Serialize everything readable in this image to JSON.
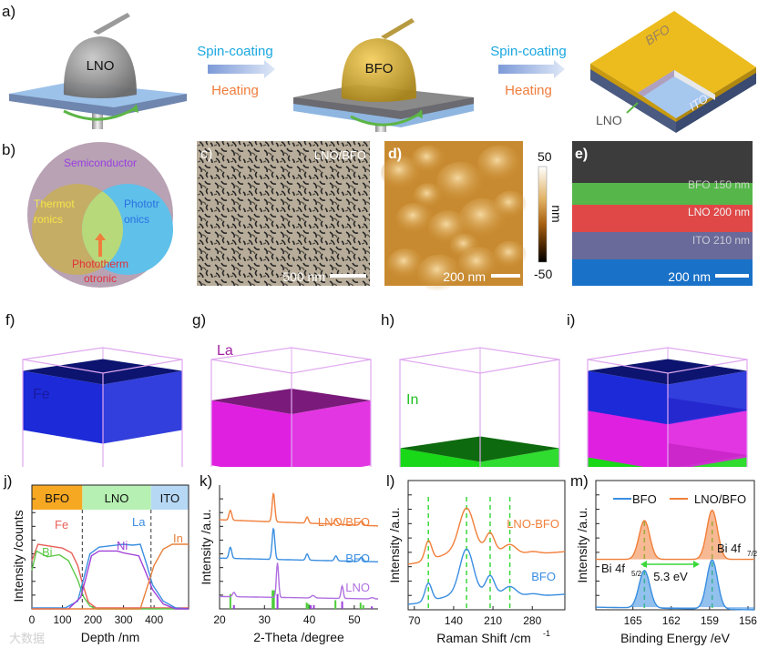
{
  "panel_labels": {
    "a": "a)",
    "b": "b)",
    "c": "c)",
    "d": "d)",
    "e": "e)",
    "f": "f)",
    "g": "g)",
    "h": "h)",
    "i": "i)",
    "j": "j)",
    "k": "k)",
    "l": "l)",
    "m": "m)"
  },
  "panel_a": {
    "step1_drop": "LNO",
    "step2_drop": "BFO",
    "arrow1": {
      "top": "Spin-coating",
      "bottom": "Heating"
    },
    "arrow2": {
      "top": "Spin-coating",
      "bottom": "Heating"
    },
    "stack_labels": {
      "top": "BFO",
      "middle": "LNO",
      "bottom": "ITO"
    },
    "colors": {
      "spin": "#1aa7e0",
      "heat": "#ef7d3c",
      "substrate": "#8fb6e0",
      "bfo": "#e8b820",
      "lno": "#8a8a8a",
      "rotation": "#5cb545"
    }
  },
  "panel_b": {
    "outer": "Semiconductor",
    "left": [
      "Thermot",
      "ronics"
    ],
    "right": [
      "Phototr",
      "onics"
    ],
    "overlap": [
      "Phototherm",
      "otronic"
    ]
  },
  "panel_c": {
    "label": "LNO/BFO",
    "scale_bar": "500 nm"
  },
  "panel_d": {
    "scale_bar": "200 nm",
    "colorbar": {
      "max": "50",
      "min": "-50",
      "unit": "nm"
    }
  },
  "panel_e": {
    "layers": [
      "BFO 150 nm",
      "LNO 200 nm",
      "ITO 210 nm"
    ],
    "scale_bar": "200 nm"
  },
  "panel_fghi": {
    "f": "Fe",
    "g": "La",
    "h": "In"
  },
  "watermark": "大数据",
  "chart_data": [
    {
      "id": "j",
      "type": "line",
      "xlabel": "Depth /nm",
      "ylabel": "Intensity /counts",
      "xlim": [
        0,
        513
      ],
      "ylim": [
        0,
        1
      ],
      "x_ticks": [
        "0",
        "100",
        "200",
        "300",
        "400"
      ],
      "regions": [
        {
          "name": "BFO",
          "from": 0,
          "to": 165,
          "color": "#f7a823"
        },
        {
          "name": "LNO",
          "from": 165,
          "to": 390,
          "color": "#b6f0b2"
        },
        {
          "name": "ITO",
          "from": 390,
          "to": 513,
          "color": "#b6d8f5"
        }
      ],
      "dividers": [
        165,
        390
      ],
      "series": [
        {
          "name": "Fe",
          "color": "#e8605a",
          "points": [
            [
              0,
              0.5
            ],
            [
              20,
              0.67
            ],
            [
              100,
              0.63
            ],
            [
              130,
              0.58
            ],
            [
              150,
              0.45
            ],
            [
              165,
              0.27
            ],
            [
              185,
              0.07
            ],
            [
              210,
              0.01
            ],
            [
              513,
              0.01
            ]
          ]
        },
        {
          "name": "Bi",
          "color": "#5dc94a",
          "points": [
            [
              0,
              0.4
            ],
            [
              15,
              0.6
            ],
            [
              50,
              0.54
            ],
            [
              90,
              0.56
            ],
            [
              120,
              0.5
            ],
            [
              150,
              0.3
            ],
            [
              170,
              0.12
            ],
            [
              190,
              0.03
            ],
            [
              210,
              0
            ],
            [
              513,
              0
            ]
          ]
        },
        {
          "name": "La",
          "color": "#3a8ee0",
          "points": [
            [
              0,
              0.01
            ],
            [
              110,
              0.01
            ],
            [
              150,
              0.08
            ],
            [
              170,
              0.32
            ],
            [
              190,
              0.57
            ],
            [
              220,
              0.64
            ],
            [
              300,
              0.67
            ],
            [
              330,
              0.66
            ],
            [
              355,
              0.67
            ],
            [
              375,
              0.47
            ],
            [
              395,
              0.25
            ],
            [
              430,
              0.08
            ],
            [
              470,
              0.01
            ],
            [
              513,
              0
            ]
          ]
        },
        {
          "name": "Ni",
          "color": "#a040d8",
          "points": [
            [
              0,
              0
            ],
            [
              120,
              0
            ],
            [
              160,
              0.12
            ],
            [
              175,
              0.3
            ],
            [
              195,
              0.55
            ],
            [
              220,
              0.6
            ],
            [
              280,
              0.6
            ],
            [
              300,
              0.58
            ],
            [
              350,
              0.55
            ],
            [
              370,
              0.4
            ],
            [
              395,
              0.2
            ],
            [
              430,
              0.05
            ],
            [
              470,
              0
            ],
            [
              513,
              0
            ]
          ]
        },
        {
          "name": "In",
          "color": "#e8803a",
          "points": [
            [
              0,
              0
            ],
            [
              355,
              0
            ],
            [
              375,
              0.2
            ],
            [
              400,
              0.45
            ],
            [
              430,
              0.62
            ],
            [
              460,
              0.67
            ],
            [
              513,
              0.67
            ]
          ]
        }
      ]
    },
    {
      "id": "k",
      "type": "line",
      "xlabel": "2-Theta /degree",
      "ylabel": "Intensity /a.u.",
      "xlim": [
        20,
        55.3
      ],
      "ylim": [
        0,
        1
      ],
      "x_ticks": [
        "20",
        "30",
        "40",
        "50"
      ],
      "series": [
        {
          "name": "LNO/BFO",
          "color": "#f07f3a",
          "baseline": [
            0.72,
            0.67
          ],
          "peaks": [
            [
              22.4,
              0.08,
              0.3
            ],
            [
              32.0,
              0.23,
              0.3
            ],
            [
              39.5,
              0.05,
              0.3
            ],
            [
              45.9,
              0.04,
              0.3
            ],
            [
              51.6,
              0.035,
              0.35
            ]
          ]
        },
        {
          "name": "BFO",
          "color": "#3a8ee0",
          "baseline": [
            0.41,
            0.38
          ],
          "peaks": [
            [
              22.4,
              0.09,
              0.3
            ],
            [
              32.0,
              0.25,
              0.3
            ],
            [
              39.5,
              0.05,
              0.3
            ],
            [
              45.9,
              0.04,
              0.3
            ],
            [
              51.6,
              0.035,
              0.35
            ]
          ]
        },
        {
          "name": "LNO",
          "color": "#b070e0",
          "baseline": [
            0.1,
            0.08
          ],
          "peaks": [
            [
              23.2,
              0.035,
              0.3
            ],
            [
              32.9,
              0.28,
              0.25
            ],
            [
              40.8,
              0.02,
              0.4
            ],
            [
              47.3,
              0.1,
              0.25
            ],
            [
              54,
              0.01,
              0.4
            ]
          ]
        }
      ],
      "reference_sticks": [
        {
          "name": "BFO ref",
          "color": "#4ccd3a",
          "lines": [
            [
              22.4,
              0.12
            ],
            [
              31.8,
              0.15
            ],
            [
              32.1,
              0.15
            ],
            [
              39.4,
              0.05
            ],
            [
              39.8,
              0.04
            ],
            [
              45.8,
              0.07
            ],
            [
              51.4,
              0.05
            ],
            [
              52.0,
              0.03
            ]
          ]
        },
        {
          "name": "LNO ref",
          "color": "#9a40d8",
          "lines": [
            [
              23.2,
              0.03
            ],
            [
              32.9,
              0.12
            ],
            [
              40.3,
              0.03
            ],
            [
              41.0,
              0.03
            ],
            [
              47.3,
              0.06
            ],
            [
              53.9,
              0.02
            ]
          ]
        }
      ]
    },
    {
      "id": "l",
      "type": "line",
      "xlabel": "Raman Shift /cm",
      "xlabel_sup": "-1",
      "ylabel": "Intensity /a.u.",
      "xlim": [
        59,
        338
      ],
      "ylim": [
        0,
        1
      ],
      "x_ticks": [
        "70",
        "140",
        "210",
        "280"
      ],
      "dashed_markers": [
        95,
        163,
        205,
        240
      ],
      "series": [
        {
          "name": "LNO-BFO",
          "color": "#f07f3a",
          "baseline": [
            0.35,
            0.45
          ],
          "peaks": [
            [
              95,
              0.15,
              6
            ],
            [
              163,
              0.32,
              13
            ],
            [
              160,
              0.08,
              40
            ],
            [
              205,
              0.15,
              8
            ],
            [
              240,
              0.08,
              12
            ],
            [
              280,
              0.02,
              12
            ]
          ]
        },
        {
          "name": "BFO",
          "color": "#3a8ee0",
          "baseline": [
            0.04,
            0.12
          ],
          "peaks": [
            [
              95,
              0.14,
              6
            ],
            [
              163,
              0.34,
              12
            ],
            [
              160,
              0.06,
              40
            ],
            [
              205,
              0.15,
              8
            ],
            [
              240,
              0.08,
              12
            ],
            [
              280,
              0.02,
              12
            ]
          ]
        }
      ]
    },
    {
      "id": "m",
      "type": "area",
      "xlabel": "Binding Energy /eV",
      "ylabel": "Intensity /a.u.",
      "xlim": [
        167.9,
        155.5
      ],
      "ylim": [
        0,
        1
      ],
      "x_ticks": [
        "165",
        "162",
        "159",
        "156"
      ],
      "dashed_markers": [
        164.1,
        158.8
      ],
      "annotations": {
        "peak_left": "Bi 4f",
        "peak_left_sub": "5/2",
        "peak_right": "Bi 4f",
        "peak_right_sub": "7/2",
        "splitting": "5.3 eV"
      },
      "legend": {
        "position": "top",
        "entries": [
          "BFO",
          "LNO/BFO"
        ]
      },
      "series": [
        {
          "name": "BFO",
          "color": "#3a8ee0",
          "baseline": [
            0.02,
            0.0
          ],
          "peaks": [
            [
              164.1,
              0.29,
              0.42
            ],
            [
              158.8,
              0.38,
              0.42
            ]
          ]
        },
        {
          "name": "LNO/BFO",
          "color": "#f07f3a",
          "baseline": [
            0.39,
            0.39
          ],
          "peaks": [
            [
              164.1,
              0.3,
              0.42
            ],
            [
              158.8,
              0.38,
              0.42
            ]
          ]
        }
      ]
    }
  ]
}
